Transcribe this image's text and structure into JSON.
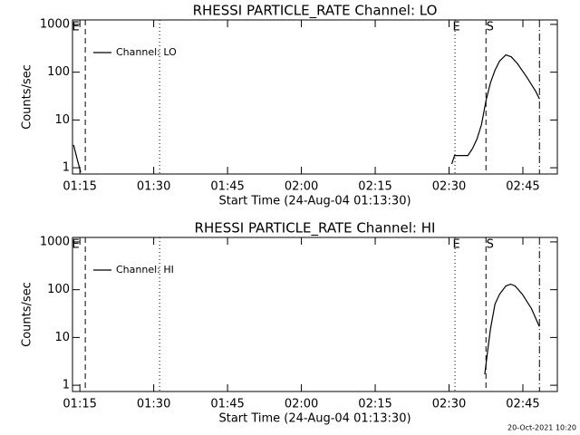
{
  "chart_data": [
    {
      "type": "line",
      "title": "RHESSI PARTICLE_RATE Channel: LO",
      "xlabel": "Start Time (24-Aug-04 01:13:30)",
      "ylabel": "Counts/sec",
      "xlim": [
        "01:13:30",
        "02:52:00"
      ],
      "xticks": [
        "01:15",
        "01:30",
        "01:45",
        "02:00",
        "02:15",
        "02:30",
        "02:45"
      ],
      "ylim": [
        0.74,
        1240
      ],
      "yticks": [
        1,
        10,
        100,
        1000
      ],
      "log_y": true,
      "legend": "upper left",
      "vlines": [
        {
          "x": "01:16:06",
          "style": "dashed"
        },
        {
          "x": "01:31:12",
          "style": "dotted"
        },
        {
          "x": "02:31:12",
          "style": "dotted"
        },
        {
          "x": "02:37:30",
          "style": "dashed"
        },
        {
          "x": "02:48:22",
          "style": "dashdot"
        }
      ],
      "markers": [
        {
          "x": "01:14:10",
          "label": "E"
        },
        {
          "x": "02:31:30",
          "label": "E"
        },
        {
          "x": "02:38:20",
          "label": "S"
        }
      ],
      "series": [
        {
          "name": "Channel: LO",
          "color": "#000000",
          "x": [
            "01:13:43",
            "01:14:27",
            "01:15:10",
            null,
            "02:30:33",
            "02:31:07",
            "02:32:00",
            "02:33:50",
            "02:34:45",
            "02:35:40",
            "02:36:35",
            "02:37:30",
            "02:38:25",
            "02:39:20",
            "02:40:15",
            "02:41:32",
            "02:42:38",
            "02:43:55",
            "02:45:45",
            "02:47:35",
            "02:48:20"
          ],
          "values": [
            3,
            1.5,
            0.8,
            null,
            1.2,
            1.8,
            1.8,
            1.8,
            2.5,
            4,
            8,
            25,
            60,
            110,
            170,
            230,
            210,
            150,
            80,
            40,
            28
          ]
        }
      ]
    },
    {
      "type": "line",
      "title": "RHESSI PARTICLE_RATE Channel: HI",
      "xlabel": "Start Time (24-Aug-04 01:13:30)",
      "ylabel": "Counts/sec",
      "xlim": [
        "01:13:30",
        "02:52:00"
      ],
      "xticks": [
        "01:15",
        "01:30",
        "01:45",
        "02:00",
        "02:15",
        "02:30",
        "02:45"
      ],
      "ylim": [
        0.74,
        1240
      ],
      "yticks": [
        1,
        10,
        100,
        1000
      ],
      "log_y": true,
      "legend": "upper left",
      "vlines": [
        {
          "x": "01:16:06",
          "style": "dashed"
        },
        {
          "x": "01:31:12",
          "style": "dotted"
        },
        {
          "x": "02:31:12",
          "style": "dotted"
        },
        {
          "x": "02:37:30",
          "style": "dashed"
        },
        {
          "x": "02:48:22",
          "style": "dashdot"
        }
      ],
      "markers": [
        {
          "x": "01:14:10",
          "label": "E"
        },
        {
          "x": "02:31:30",
          "label": "E"
        },
        {
          "x": "02:38:20",
          "label": "S"
        }
      ],
      "series": [
        {
          "name": "Channel: HI",
          "color": "#000000",
          "x": [
            "02:37:15",
            "02:37:55",
            "02:38:25",
            "02:39:20",
            "02:40:15",
            "02:41:32",
            "02:42:30",
            "02:43:25",
            "02:44:55",
            "02:46:45",
            "02:48:20"
          ],
          "values": [
            1.7,
            6,
            15,
            50,
            80,
            120,
            130,
            120,
            80,
            40,
            17
          ]
        }
      ]
    }
  ],
  "footer": "20-Oct-2021 10:20"
}
